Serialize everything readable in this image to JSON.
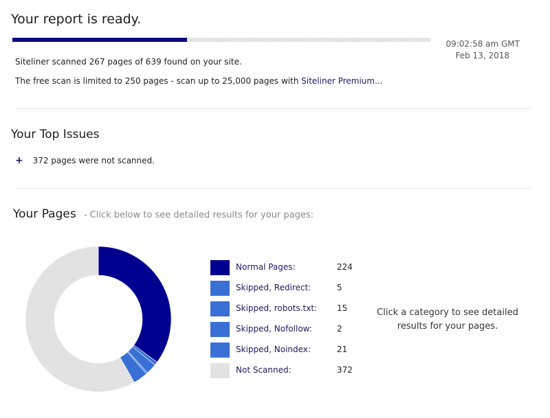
{
  "header": {
    "title": "Your report is ready.",
    "progress": {
      "scanned": 267,
      "found": 639
    },
    "time": "09:02:58 am GMT",
    "date": "Feb 13, 2018"
  },
  "summary": {
    "scanned_text": "Siteliner scanned 267 pages of 639 found on your site.",
    "limit_text": "The free scan is limited to 250 pages - scan up to 25,000 pages with ",
    "premium_link": "Siteliner Premium..."
  },
  "issues": {
    "title": "Your Top Issues",
    "items": [
      {
        "symbol": "+",
        "text": "372 pages were not scanned."
      }
    ]
  },
  "pages": {
    "title": "Your Pages",
    "subtitle": "- Click below to see detailed results for your pages:",
    "hint": "Click a category to see detailed results for your pages."
  },
  "chart_data": {
    "type": "pie",
    "style": "donut",
    "categories": [
      "Normal Pages:",
      "Skipped, Redirect:",
      "Skipped, robots.txt:",
      "Skipped, Nofollow:",
      "Skipped, Noindex:",
      "Not Scanned:"
    ],
    "values": [
      224,
      5,
      15,
      2,
      21,
      372
    ],
    "labels": [
      "224",
      "5",
      "15",
      "2",
      "21",
      "372"
    ],
    "colors": [
      "#000090",
      "#3a6fd6",
      "#3a6fd6",
      "#3a6fd6",
      "#3a6fd6",
      "#e2e2e2"
    ],
    "legend_position": "right"
  }
}
